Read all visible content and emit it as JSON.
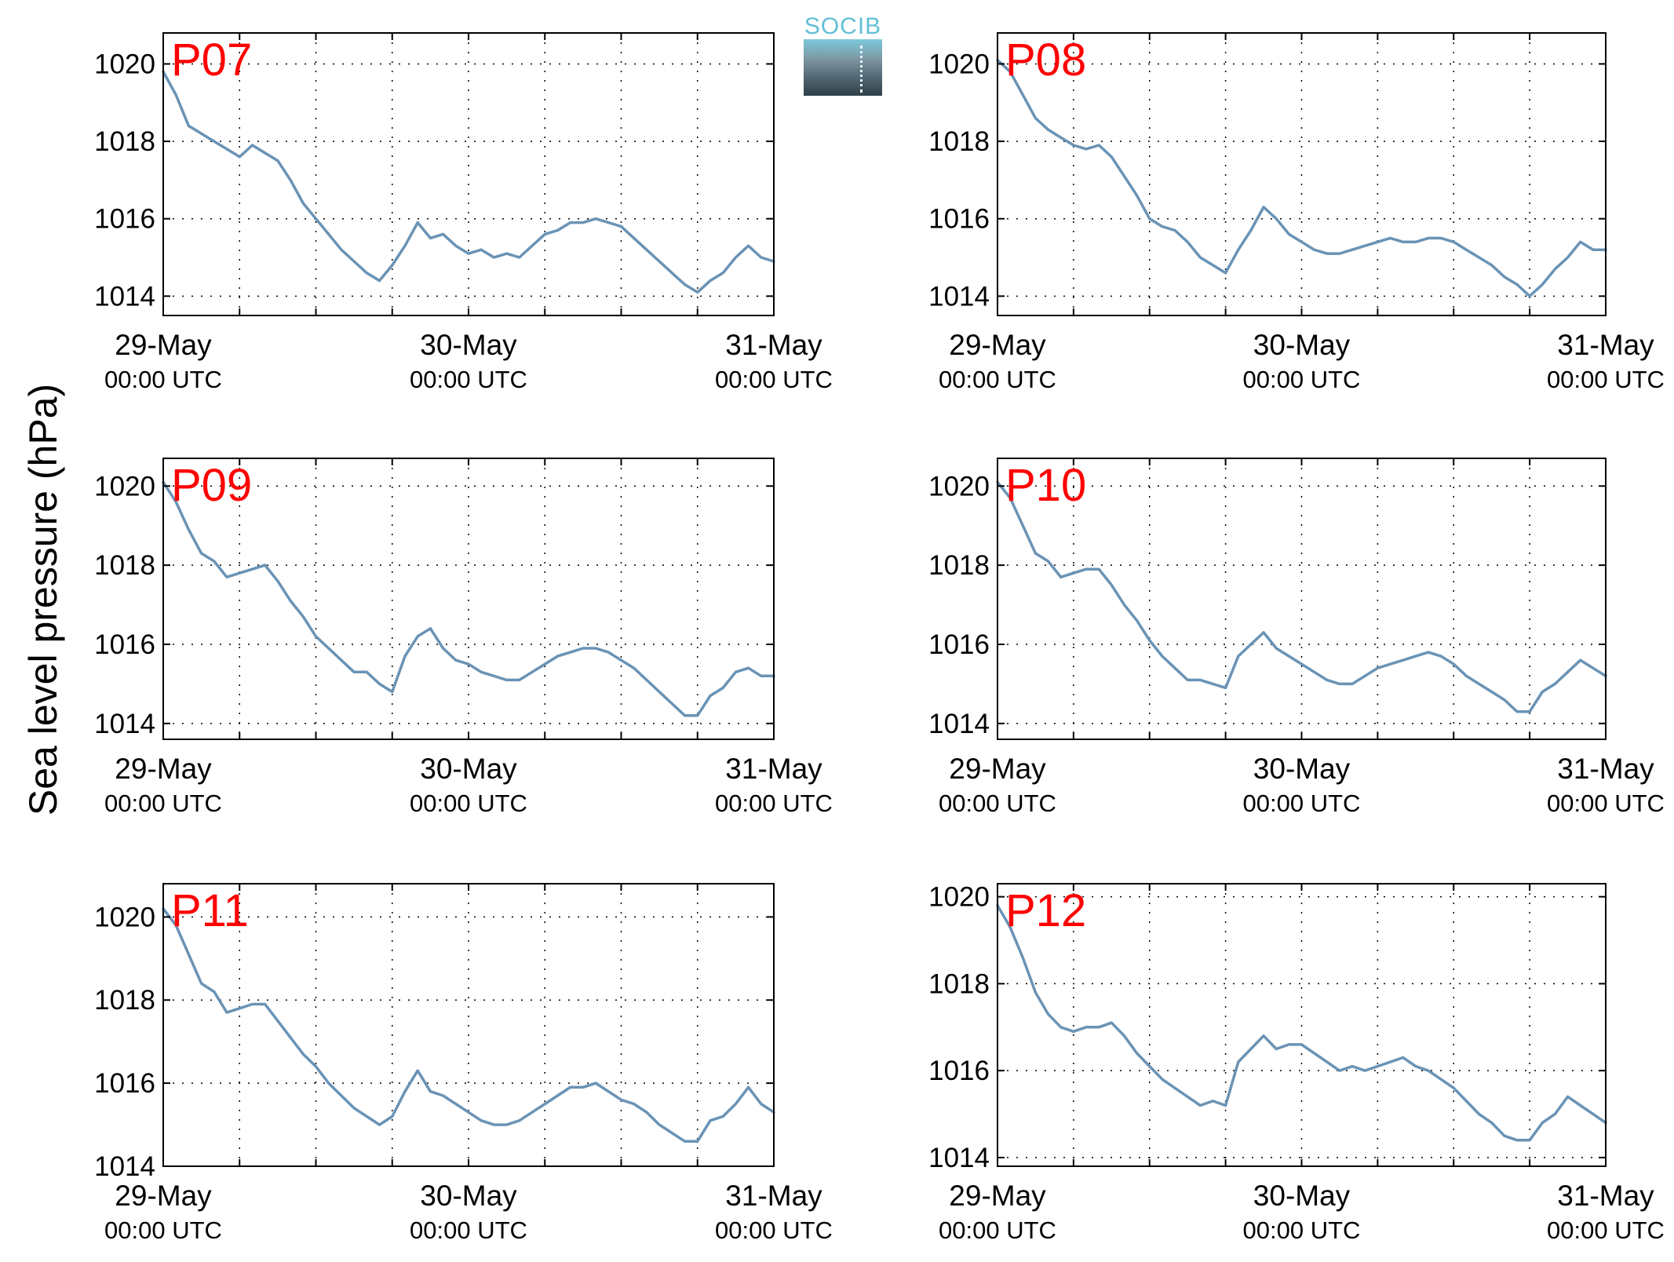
{
  "logo": {
    "text": "SOCIB"
  },
  "ylabel": "Sea level pressure (hPa)",
  "colors": {
    "line": "#6a93b5",
    "panel_label": "#ff0000",
    "axis": "#000000",
    "grid": "#000000"
  },
  "chart_data": [
    {
      "type": "line",
      "title": "P07",
      "xlim_hours": [
        0,
        48
      ],
      "ylim": [
        1013.5,
        1020.8
      ],
      "yticks": [
        1014,
        1016,
        1018,
        1020
      ],
      "xticks": [
        {
          "hour": 0,
          "date": "29-May",
          "time": "00:00 UTC"
        },
        {
          "hour": 24,
          "date": "30-May",
          "time": "00:00 UTC"
        },
        {
          "hour": 48,
          "date": "31-May",
          "time": "00:00 UTC"
        }
      ],
      "grid_x_hours": [
        6,
        12,
        18,
        24,
        30,
        36,
        42
      ],
      "series": [
        {
          "x": [
            0,
            1,
            2,
            3,
            4,
            5,
            6,
            7,
            8,
            9,
            10,
            11,
            12,
            13,
            14,
            15,
            16,
            17,
            18,
            19,
            20,
            21,
            22,
            23,
            24,
            25,
            26,
            27,
            28,
            29,
            30,
            31,
            32,
            33,
            34,
            35,
            36,
            37,
            38,
            39,
            40,
            41,
            42,
            43,
            44,
            45,
            46,
            47,
            48
          ],
          "y": [
            1019.8,
            1019.2,
            1018.4,
            1018.2,
            1018.0,
            1017.8,
            1017.6,
            1017.9,
            1017.7,
            1017.5,
            1017.0,
            1016.4,
            1016.0,
            1015.6,
            1015.2,
            1014.9,
            1014.6,
            1014.4,
            1014.8,
            1015.3,
            1015.9,
            1015.5,
            1015.6,
            1015.3,
            1015.1,
            1015.2,
            1015.0,
            1015.1,
            1015.0,
            1015.3,
            1015.6,
            1015.7,
            1015.9,
            1015.9,
            1016.0,
            1015.9,
            1015.8,
            1015.5,
            1015.2,
            1014.9,
            1014.6,
            1014.3,
            1014.1,
            1014.4,
            1014.6,
            1015.0,
            1015.3,
            1015.0,
            1014.9
          ]
        }
      ]
    },
    {
      "type": "line",
      "title": "P08",
      "xlim_hours": [
        0,
        48
      ],
      "ylim": [
        1013.5,
        1020.8
      ],
      "yticks": [
        1014,
        1016,
        1018,
        1020
      ],
      "xticks": [
        {
          "hour": 0,
          "date": "29-May",
          "time": "00:00 UTC"
        },
        {
          "hour": 24,
          "date": "30-May",
          "time": "00:00 UTC"
        },
        {
          "hour": 48,
          "date": "31-May",
          "time": "00:00 UTC"
        }
      ],
      "grid_x_hours": [
        6,
        12,
        18,
        24,
        30,
        36,
        42
      ],
      "series": [
        {
          "x": [
            0,
            1,
            2,
            3,
            4,
            5,
            6,
            7,
            8,
            9,
            10,
            11,
            12,
            13,
            14,
            15,
            16,
            17,
            18,
            19,
            20,
            21,
            22,
            23,
            24,
            25,
            26,
            27,
            28,
            29,
            30,
            31,
            32,
            33,
            34,
            35,
            36,
            37,
            38,
            39,
            40,
            41,
            42,
            43,
            44,
            45,
            46,
            47,
            48
          ],
          "y": [
            1020.1,
            1019.8,
            1019.2,
            1018.6,
            1018.3,
            1018.1,
            1017.9,
            1017.8,
            1017.9,
            1017.6,
            1017.1,
            1016.6,
            1016.0,
            1015.8,
            1015.7,
            1015.4,
            1015.0,
            1014.8,
            1014.6,
            1015.2,
            1015.7,
            1016.3,
            1016.0,
            1015.6,
            1015.4,
            1015.2,
            1015.1,
            1015.1,
            1015.2,
            1015.3,
            1015.4,
            1015.5,
            1015.4,
            1015.4,
            1015.5,
            1015.5,
            1015.4,
            1015.2,
            1015.0,
            1014.8,
            1014.5,
            1014.3,
            1014.0,
            1014.3,
            1014.7,
            1015.0,
            1015.4,
            1015.2,
            1015.2
          ]
        }
      ]
    },
    {
      "type": "line",
      "title": "P09",
      "xlim_hours": [
        0,
        48
      ],
      "ylim": [
        1013.6,
        1020.7
      ],
      "yticks": [
        1014,
        1016,
        1018,
        1020
      ],
      "xticks": [
        {
          "hour": 0,
          "date": "29-May",
          "time": "00:00 UTC"
        },
        {
          "hour": 24,
          "date": "30-May",
          "time": "00:00 UTC"
        },
        {
          "hour": 48,
          "date": "31-May",
          "time": "00:00 UTC"
        }
      ],
      "grid_x_hours": [
        6,
        12,
        18,
        24,
        30,
        36,
        42
      ],
      "series": [
        {
          "x": [
            0,
            1,
            2,
            3,
            4,
            5,
            6,
            7,
            8,
            9,
            10,
            11,
            12,
            13,
            14,
            15,
            16,
            17,
            18,
            19,
            20,
            21,
            22,
            23,
            24,
            25,
            26,
            27,
            28,
            29,
            30,
            31,
            32,
            33,
            34,
            35,
            36,
            37,
            38,
            39,
            40,
            41,
            42,
            43,
            44,
            45,
            46,
            47,
            48
          ],
          "y": [
            1020.1,
            1019.6,
            1018.9,
            1018.3,
            1018.1,
            1017.7,
            1017.8,
            1017.9,
            1018.0,
            1017.6,
            1017.1,
            1016.7,
            1016.2,
            1015.9,
            1015.6,
            1015.3,
            1015.3,
            1015.0,
            1014.8,
            1015.7,
            1016.2,
            1016.4,
            1015.9,
            1015.6,
            1015.5,
            1015.3,
            1015.2,
            1015.1,
            1015.1,
            1015.3,
            1015.5,
            1015.7,
            1015.8,
            1015.9,
            1015.9,
            1015.8,
            1015.6,
            1015.4,
            1015.1,
            1014.8,
            1014.5,
            1014.2,
            1014.2,
            1014.7,
            1014.9,
            1015.3,
            1015.4,
            1015.2,
            1015.2
          ]
        }
      ]
    },
    {
      "type": "line",
      "title": "P10",
      "xlim_hours": [
        0,
        48
      ],
      "ylim": [
        1013.6,
        1020.7
      ],
      "yticks": [
        1014,
        1016,
        1018,
        1020
      ],
      "xticks": [
        {
          "hour": 0,
          "date": "29-May",
          "time": "00:00 UTC"
        },
        {
          "hour": 24,
          "date": "30-May",
          "time": "00:00 UTC"
        },
        {
          "hour": 48,
          "date": "31-May",
          "time": "00:00 UTC"
        }
      ],
      "grid_x_hours": [
        6,
        12,
        18,
        24,
        30,
        36,
        42
      ],
      "series": [
        {
          "x": [
            0,
            1,
            2,
            3,
            4,
            5,
            6,
            7,
            8,
            9,
            10,
            11,
            12,
            13,
            14,
            15,
            16,
            17,
            18,
            19,
            20,
            21,
            22,
            23,
            24,
            25,
            26,
            27,
            28,
            29,
            30,
            31,
            32,
            33,
            34,
            35,
            36,
            37,
            38,
            39,
            40,
            41,
            42,
            43,
            44,
            45,
            46,
            47,
            48
          ],
          "y": [
            1020.1,
            1019.7,
            1019.0,
            1018.3,
            1018.1,
            1017.7,
            1017.8,
            1017.9,
            1017.9,
            1017.5,
            1017.0,
            1016.6,
            1016.1,
            1015.7,
            1015.4,
            1015.1,
            1015.1,
            1015.0,
            1014.9,
            1015.7,
            1016.0,
            1016.3,
            1015.9,
            1015.7,
            1015.5,
            1015.3,
            1015.1,
            1015.0,
            1015.0,
            1015.2,
            1015.4,
            1015.5,
            1015.6,
            1015.7,
            1015.8,
            1015.7,
            1015.5,
            1015.2,
            1015.0,
            1014.8,
            1014.6,
            1014.3,
            1014.3,
            1014.8,
            1015.0,
            1015.3,
            1015.6,
            1015.4,
            1015.2
          ]
        }
      ]
    },
    {
      "type": "line",
      "title": "P11",
      "xlim_hours": [
        0,
        48
      ],
      "ylim": [
        1014.0,
        1020.8
      ],
      "yticks": [
        1014,
        1016,
        1018,
        1020
      ],
      "xticks": [
        {
          "hour": 0,
          "date": "29-May",
          "time": "00:00 UTC"
        },
        {
          "hour": 24,
          "date": "30-May",
          "time": "00:00 UTC"
        },
        {
          "hour": 48,
          "date": "31-May",
          "time": "00:00 UTC"
        }
      ],
      "grid_x_hours": [
        6,
        12,
        18,
        24,
        30,
        36,
        42
      ],
      "series": [
        {
          "x": [
            0,
            1,
            2,
            3,
            4,
            5,
            6,
            7,
            8,
            9,
            10,
            11,
            12,
            13,
            14,
            15,
            16,
            17,
            18,
            19,
            20,
            21,
            22,
            23,
            24,
            25,
            26,
            27,
            28,
            29,
            30,
            31,
            32,
            33,
            34,
            35,
            36,
            37,
            38,
            39,
            40,
            41,
            42,
            43,
            44,
            45,
            46,
            47,
            48
          ],
          "y": [
            1020.2,
            1019.8,
            1019.1,
            1018.4,
            1018.2,
            1017.7,
            1017.8,
            1017.9,
            1017.9,
            1017.5,
            1017.1,
            1016.7,
            1016.4,
            1016.0,
            1015.7,
            1015.4,
            1015.2,
            1015.0,
            1015.2,
            1015.8,
            1016.3,
            1015.8,
            1015.7,
            1015.5,
            1015.3,
            1015.1,
            1015.0,
            1015.0,
            1015.1,
            1015.3,
            1015.5,
            1015.7,
            1015.9,
            1015.9,
            1016.0,
            1015.8,
            1015.6,
            1015.5,
            1015.3,
            1015.0,
            1014.8,
            1014.6,
            1014.6,
            1015.1,
            1015.2,
            1015.5,
            1015.9,
            1015.5,
            1015.3
          ]
        }
      ]
    },
    {
      "type": "line",
      "title": "P12",
      "xlim_hours": [
        0,
        48
      ],
      "ylim": [
        1013.8,
        1020.3
      ],
      "yticks": [
        1014,
        1016,
        1018,
        1020
      ],
      "xticks": [
        {
          "hour": 0,
          "date": "29-May",
          "time": "00:00 UTC"
        },
        {
          "hour": 24,
          "date": "30-May",
          "time": "00:00 UTC"
        },
        {
          "hour": 48,
          "date": "31-May",
          "time": "00:00 UTC"
        }
      ],
      "grid_x_hours": [
        6,
        12,
        18,
        24,
        30,
        36,
        42
      ],
      "series": [
        {
          "x": [
            0,
            1,
            2,
            3,
            4,
            5,
            6,
            7,
            8,
            9,
            10,
            11,
            12,
            13,
            14,
            15,
            16,
            17,
            18,
            19,
            20,
            21,
            22,
            23,
            24,
            25,
            26,
            27,
            28,
            29,
            30,
            31,
            32,
            33,
            34,
            35,
            36,
            37,
            38,
            39,
            40,
            41,
            42,
            43,
            44,
            45,
            46,
            47,
            48
          ],
          "y": [
            1019.8,
            1019.3,
            1018.6,
            1017.8,
            1017.3,
            1017.0,
            1016.9,
            1017.0,
            1017.0,
            1017.1,
            1016.8,
            1016.4,
            1016.1,
            1015.8,
            1015.6,
            1015.4,
            1015.2,
            1015.3,
            1015.2,
            1016.2,
            1016.5,
            1016.8,
            1016.5,
            1016.6,
            1016.6,
            1016.4,
            1016.2,
            1016.0,
            1016.1,
            1016.0,
            1016.1,
            1016.2,
            1016.3,
            1016.1,
            1016.0,
            1015.8,
            1015.6,
            1015.3,
            1015.0,
            1014.8,
            1014.5,
            1014.4,
            1014.4,
            1014.8,
            1015.0,
            1015.4,
            1015.2,
            1015.0,
            1014.8
          ]
        }
      ]
    }
  ]
}
